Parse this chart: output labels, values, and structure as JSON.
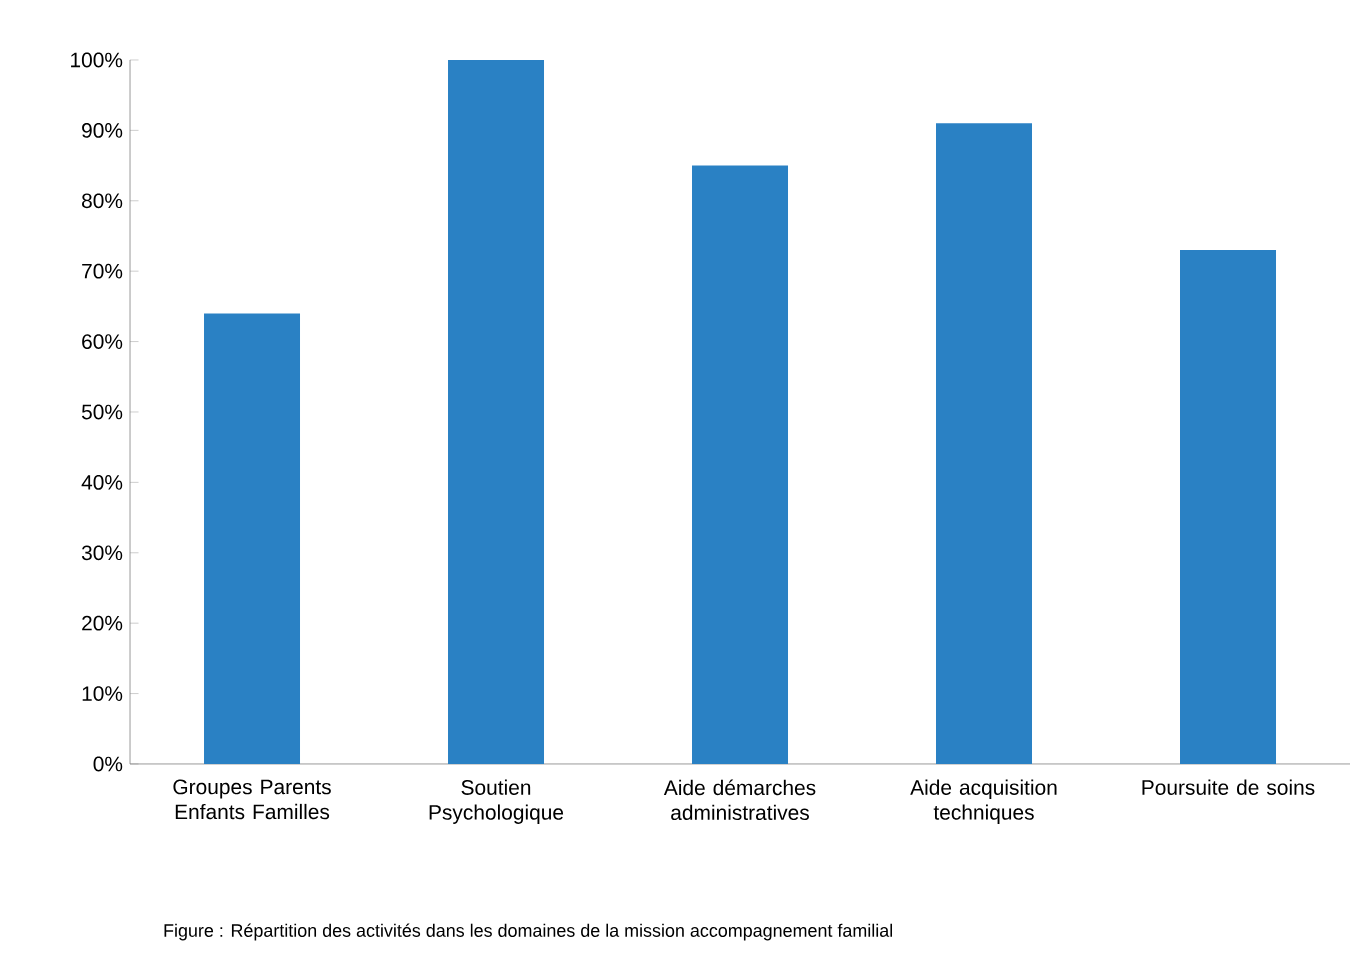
{
  "chart_data": {
    "type": "bar",
    "categories": [
      "Groupes Parents Enfants Familles",
      "Soutien Psychologique",
      "Aide démarches administratives",
      "Aide acquisition techniques",
      "Poursuite de soins"
    ],
    "values": [
      64,
      100,
      85,
      91,
      73
    ],
    "color": "#2a81c4",
    "ylim": [
      0,
      100
    ],
    "yticks": [
      {
        "value": 0,
        "label": "0%"
      },
      {
        "value": 10,
        "label": "10%"
      },
      {
        "value": 20,
        "label": "20%"
      },
      {
        "value": 30,
        "label": "30%"
      },
      {
        "value": 40,
        "label": "40%"
      },
      {
        "value": 50,
        "label": "50%"
      },
      {
        "value": 60,
        "label": "60%"
      },
      {
        "value": 70,
        "label": "70%"
      },
      {
        "value": 80,
        "label": "80%"
      },
      {
        "value": 90,
        "label": "90%"
      },
      {
        "value": 100,
        "label": "100%"
      }
    ],
    "annotations": [
      "Figure  : Répartition des activités dans les domaines de la mission accompagnement familial"
    ]
  }
}
